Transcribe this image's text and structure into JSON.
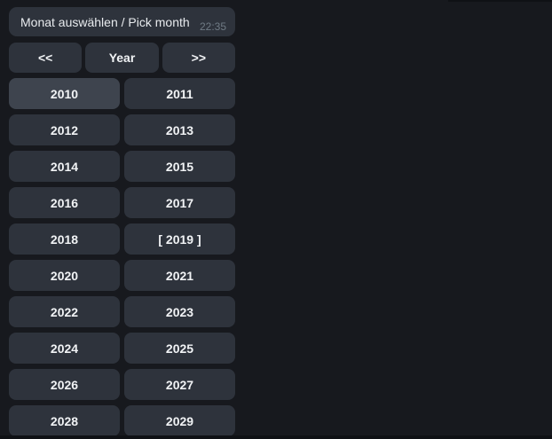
{
  "message": {
    "text": "Monat auswählen / Pick month",
    "time": "22:35"
  },
  "nav": {
    "prev_label": "<<",
    "mode_label": "Year",
    "next_label": ">>"
  },
  "years": [
    {
      "label": "2010",
      "highlighted": true
    },
    {
      "label": "2011"
    },
    {
      "label": "2012"
    },
    {
      "label": "2013"
    },
    {
      "label": "2014"
    },
    {
      "label": "2015"
    },
    {
      "label": "2016"
    },
    {
      "label": "2017"
    },
    {
      "label": "2018"
    },
    {
      "label": "[ 2019 ]",
      "current": true
    },
    {
      "label": "2020"
    },
    {
      "label": "2021"
    },
    {
      "label": "2022"
    },
    {
      "label": "2023"
    },
    {
      "label": "2024"
    },
    {
      "label": "2025"
    },
    {
      "label": "2026"
    },
    {
      "label": "2027"
    },
    {
      "label": "2028"
    },
    {
      "label": "2029"
    }
  ],
  "colors": {
    "background": "#17191e",
    "surface": "#2e333c",
    "surface-highlight": "#3e444e",
    "text": "#e8ebee",
    "button-text": "#f1f3f5",
    "timestamp": "#6f7a84",
    "edge": "#0f1115"
  }
}
